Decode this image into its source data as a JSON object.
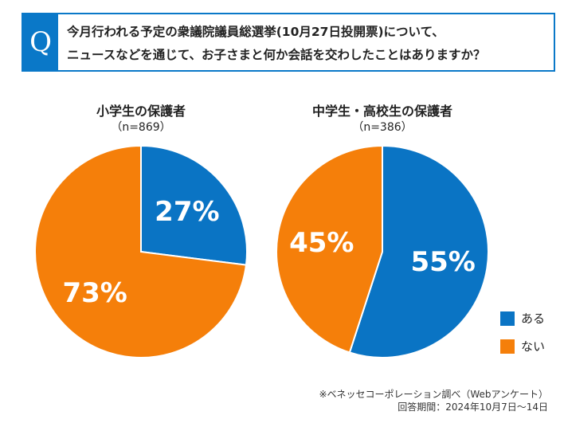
{
  "question": {
    "mark": "Q",
    "line1": "今月行われる予定の衆議院議員総選挙(10月27日投開票)について、",
    "line2": "ニュースなどを通じて、お子さまと何か会話を交わしたことはありますか？"
  },
  "chart_data": [
    {
      "type": "pie",
      "title": "小学生の保護者",
      "n_label": "（n=869）",
      "slices": [
        {
          "label": "ある",
          "value": 27,
          "display": "27%"
        },
        {
          "label": "ない",
          "value": 73,
          "display": "73%"
        }
      ]
    },
    {
      "type": "pie",
      "title": "中学生・高校生の保護者",
      "n_label": "（n=386）",
      "slices": [
        {
          "label": "ある",
          "value": 55,
          "display": "55%"
        },
        {
          "label": "ない",
          "value": 45,
          "display": "45%"
        }
      ]
    }
  ],
  "legend": [
    {
      "label": "ある",
      "color": "#0a74c4"
    },
    {
      "label": "ない",
      "color": "#f57f0a"
    }
  ],
  "footer": {
    "source": "※ベネッセコーポレーション調べ（Webアンケート）",
    "period": "回答期間：2024年10月7日〜14日"
  }
}
